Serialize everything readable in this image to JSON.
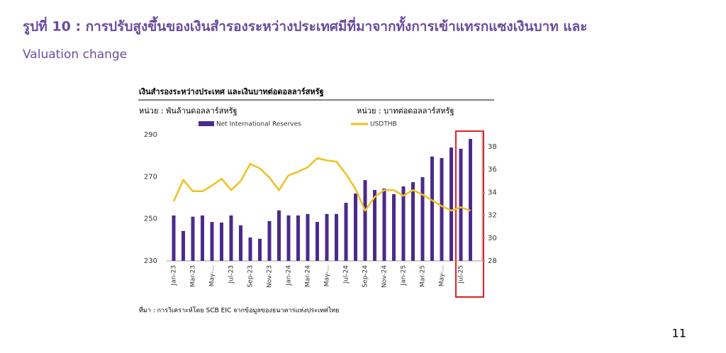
{
  "header": {
    "title": "รูปที่ 10 : การปรับสูงขึ้นของเงินสำรองระหว่างประเทศมีที่มาจากทั้งการเข้าแทรกแซงเงินบาท และ",
    "subtitle": "Valuation change"
  },
  "chart_data": {
    "type": "bar_line",
    "title": "เงินสำรองระหว่างประเทศ  และเงินบาทต่อดอลลาร์สหรัฐ",
    "y_label": "หน่วย : พันล้านดอลลาร์สหรัฐ",
    "y2_label": "หน่วย : บาทต่อดอลลาร์สหรัฐ",
    "categories": [
      "Jan-23",
      null,
      "Mar-23",
      null,
      "May-...",
      null,
      "Jul-23",
      null,
      "Sep-23",
      null,
      "Nov-23",
      null,
      "Jan-24",
      null,
      "Mar-24",
      null,
      "May-...",
      null,
      "Jul-24",
      null,
      "Sep-24",
      null,
      "Nov-24",
      null,
      "Jan-25",
      null,
      "Mar-25",
      null,
      "May-...",
      null,
      "Jul-25",
      null
    ],
    "series": [
      {
        "name": "Net International Reserves",
        "color": "#4b2a8c",
        "kind": "bar",
        "values": [
          251.6,
          244.2,
          251,
          251.6,
          248.5,
          248.2,
          251.6,
          246.9,
          241.1,
          240.5,
          248.9,
          254,
          251.6,
          251.6,
          252.3,
          248.5,
          252.3,
          252.3,
          257.6,
          262,
          268.4,
          263.7,
          264.4,
          261.7,
          265.4,
          267.4,
          269.8,
          279.6,
          278.9,
          283.9,
          283.3,
          288
        ]
      },
      {
        "name": "USDTHB",
        "color": "#f0c020",
        "kind": "line",
        "axis": "y2",
        "values": [
          33.2,
          35.1,
          34.1,
          34.1,
          34.6,
          35.2,
          34.2,
          35,
          36.5,
          36.1,
          35.3,
          34.2,
          35.5,
          35.8,
          36.2,
          37,
          36.8,
          36.7,
          35.6,
          34.3,
          32.4,
          33.6,
          34.2,
          34.2,
          33.7,
          34.2,
          33.8,
          33.3,
          32.8,
          32.4,
          32.7,
          32.4
        ]
      }
    ],
    "ylim": [
      230,
      290
    ],
    "yticks": [
      230,
      250,
      270,
      290
    ],
    "y2lim": [
      28,
      38
    ],
    "y2ticks": [
      28,
      30,
      32,
      34,
      36,
      38
    ],
    "source": "ที่มา : การวิเคราะห์โดย SCB EIC จากข้อมูลของธนาคารแห่งประเทศไทย"
  },
  "page_number": "11"
}
